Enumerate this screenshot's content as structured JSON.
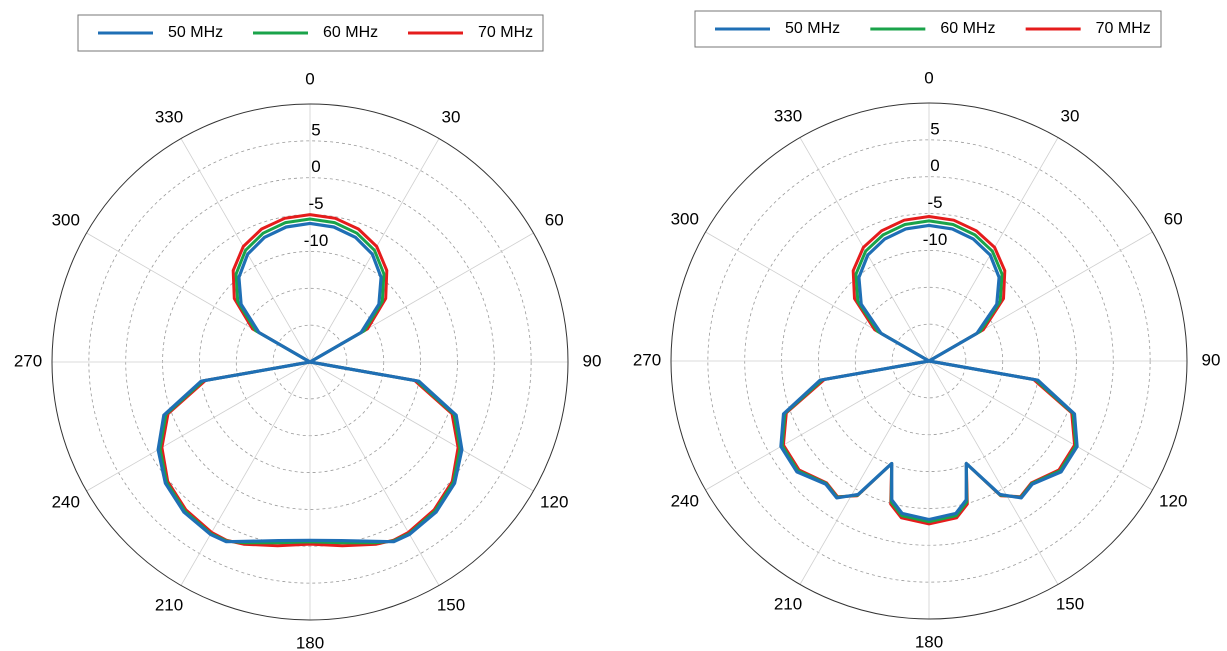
{
  "chart_data": [
    {
      "type": "polar",
      "panel": "left",
      "angle_direction": "clockwise",
      "zero_location": "top",
      "angle_ticks": [
        0,
        30,
        60,
        90,
        120,
        150,
        180,
        210,
        240,
        270,
        300,
        330
      ],
      "angle_tick_labels": [
        "0",
        "30",
        "60",
        "90",
        "120",
        "150",
        "180",
        "210",
        "240",
        "270",
        "300",
        "330"
      ],
      "r_range": [
        -25,
        10
      ],
      "r_ticks": [
        -10,
        -5,
        0,
        5
      ],
      "r_tick_labels": [
        "-10",
        "-5",
        "0",
        "5"
      ],
      "r_tick_angle_deg": 0,
      "grid": true,
      "legend_position": "top",
      "series": [
        {
          "name": "50 MHz",
          "color": "#1f6fb5",
          "theta": [
            0,
            10,
            20,
            30,
            40,
            50,
            60,
            70,
            80,
            90,
            100,
            110,
            120,
            130,
            140,
            150,
            155,
            160,
            170,
            180,
            190,
            200,
            205,
            210,
            220,
            230,
            240,
            250,
            260,
            270,
            280,
            290,
            300,
            310,
            320,
            330,
            340,
            350
          ],
          "r_db": [
            -6.2,
            -6.4,
            -7.0,
            -8.1,
            -10.0,
            -12.8,
            -17.0,
            -25.0,
            -25.0,
            -25.0,
            -10.0,
            -3.9,
            -1.2,
            0.6,
            1.6,
            2.0,
            1.9,
            0.9,
            -0.4,
            -0.8,
            -0.4,
            0.9,
            1.9,
            2.0,
            1.6,
            0.6,
            -1.2,
            -3.9,
            -10.0,
            -25.0,
            -25.0,
            -25.0,
            -17.0,
            -12.8,
            -10.0,
            -8.1,
            -7.0,
            -6.4
          ]
        },
        {
          "name": "60 MHz",
          "color": "#1aa34a",
          "theta": [
            0,
            10,
            20,
            30,
            40,
            50,
            60,
            70,
            80,
            90,
            100,
            110,
            120,
            130,
            140,
            150,
            155,
            160,
            170,
            180,
            190,
            200,
            205,
            210,
            220,
            230,
            240,
            250,
            260,
            270,
            280,
            290,
            300,
            310,
            320,
            330,
            340,
            350
          ],
          "r_db": [
            -5.6,
            -5.8,
            -6.4,
            -7.5,
            -9.4,
            -12.2,
            -16.5,
            -25.0,
            -25.0,
            -25.0,
            -10.3,
            -4.2,
            -1.5,
            0.4,
            1.4,
            1.9,
            1.8,
            1.1,
            -0.1,
            -0.6,
            -0.1,
            1.1,
            1.8,
            1.9,
            1.4,
            0.4,
            -1.5,
            -4.2,
            -10.3,
            -25.0,
            -25.0,
            -25.0,
            -16.5,
            -12.2,
            -9.4,
            -7.5,
            -6.4,
            -5.8
          ]
        },
        {
          "name": "70 MHz",
          "color": "#e51c1c",
          "theta": [
            0,
            10,
            20,
            30,
            40,
            50,
            60,
            70,
            80,
            90,
            100,
            110,
            120,
            130,
            140,
            150,
            155,
            160,
            170,
            180,
            190,
            200,
            205,
            210,
            220,
            230,
            240,
            250,
            260,
            270,
            280,
            290,
            300,
            310,
            320,
            330,
            340,
            350
          ],
          "r_db": [
            -5.0,
            -5.2,
            -5.8,
            -6.9,
            -8.8,
            -11.6,
            -16.0,
            -25.0,
            -25.0,
            -25.0,
            -10.6,
            -4.5,
            -1.8,
            0.2,
            1.2,
            1.7,
            1.7,
            1.3,
            0.3,
            -0.3,
            0.3,
            1.3,
            1.7,
            1.7,
            1.2,
            0.2,
            -1.8,
            -4.5,
            -10.6,
            -25.0,
            -25.0,
            -25.0,
            -16.0,
            -11.6,
            -8.8,
            -6.9,
            -5.8,
            -5.2
          ]
        }
      ]
    },
    {
      "type": "polar",
      "panel": "right",
      "angle_direction": "clockwise",
      "zero_location": "top",
      "angle_ticks": [
        0,
        30,
        60,
        90,
        120,
        150,
        180,
        210,
        240,
        270,
        300,
        330
      ],
      "angle_tick_labels": [
        "0",
        "30",
        "60",
        "90",
        "120",
        "150",
        "180",
        "210",
        "240",
        "270",
        "300",
        "330"
      ],
      "r_range": [
        -25,
        10
      ],
      "r_ticks": [
        -10,
        -5,
        0,
        5
      ],
      "r_tick_labels": [
        "-10",
        "-5",
        "0",
        "5"
      ],
      "r_tick_angle_deg": 0,
      "grid": true,
      "legend_position": "top",
      "series": [
        {
          "name": "50 MHz",
          "color": "#1f6fb5",
          "theta": [
            0,
            10,
            20,
            30,
            40,
            50,
            60,
            70,
            80,
            90,
            100,
            110,
            120,
            130,
            140,
            146,
            152,
            160,
            165,
            170,
            180,
            190,
            195,
            200,
            208,
            214,
            220,
            230,
            240,
            250,
            260,
            270,
            280,
            290,
            300,
            310,
            320,
            330,
            340,
            350
          ],
          "r_db": [
            -6.6,
            -6.8,
            -7.4,
            -8.4,
            -10.2,
            -13.0,
            -17.5,
            -25.0,
            -25.0,
            -25.0,
            -10.0,
            -4.0,
            -1.8,
            -1.6,
            -3.2,
            -2.6,
            -4.5,
            -10.2,
            -5.5,
            -4.0,
            -3.5,
            -4.0,
            -5.5,
            -10.2,
            -4.5,
            -2.6,
            -3.2,
            -1.6,
            -1.8,
            -4.0,
            -10.0,
            -25.0,
            -25.0,
            -25.0,
            -17.5,
            -13.0,
            -10.2,
            -8.4,
            -7.4,
            -6.8
          ]
        },
        {
          "name": "60 MHz",
          "color": "#1aa34a",
          "theta": [
            0,
            10,
            20,
            30,
            40,
            50,
            60,
            70,
            80,
            90,
            100,
            110,
            120,
            130,
            140,
            146,
            152,
            160,
            165,
            170,
            180,
            190,
            195,
            200,
            208,
            214,
            220,
            230,
            240,
            250,
            260,
            270,
            280,
            290,
            300,
            310,
            320,
            330,
            340,
            350
          ],
          "r_db": [
            -6.0,
            -6.2,
            -6.8,
            -7.8,
            -9.6,
            -12.4,
            -17.0,
            -25.0,
            -25.0,
            -25.0,
            -10.3,
            -4.2,
            -2.0,
            -1.8,
            -3.3,
            -2.7,
            -4.4,
            -10.2,
            -5.2,
            -3.7,
            -3.2,
            -3.7,
            -5.2,
            -10.2,
            -4.4,
            -2.7,
            -3.3,
            -1.8,
            -2.0,
            -4.2,
            -10.3,
            -25.0,
            -25.0,
            -25.0,
            -17.0,
            -12.4,
            -9.6,
            -7.8,
            -6.8,
            -6.2
          ]
        },
        {
          "name": "70 MHz",
          "color": "#e51c1c",
          "theta": [
            0,
            10,
            20,
            30,
            40,
            50,
            60,
            70,
            80,
            90,
            100,
            110,
            120,
            130,
            140,
            146,
            152,
            160,
            165,
            170,
            180,
            190,
            195,
            200,
            208,
            214,
            220,
            230,
            240,
            250,
            260,
            270,
            280,
            290,
            300,
            310,
            320,
            330,
            340,
            350
          ],
          "r_db": [
            -5.4,
            -5.6,
            -6.2,
            -7.2,
            -9.0,
            -11.8,
            -16.5,
            -25.0,
            -25.0,
            -25.0,
            -10.6,
            -4.4,
            -2.2,
            -2.0,
            -3.4,
            -2.8,
            -4.3,
            -10.2,
            -4.9,
            -3.4,
            -2.9,
            -3.4,
            -4.9,
            -10.2,
            -4.3,
            -2.8,
            -3.4,
            -2.0,
            -2.2,
            -4.4,
            -10.6,
            -25.0,
            -25.0,
            -25.0,
            -16.5,
            -11.8,
            -9.0,
            -7.2,
            -6.2,
            -5.6
          ]
        }
      ]
    }
  ]
}
